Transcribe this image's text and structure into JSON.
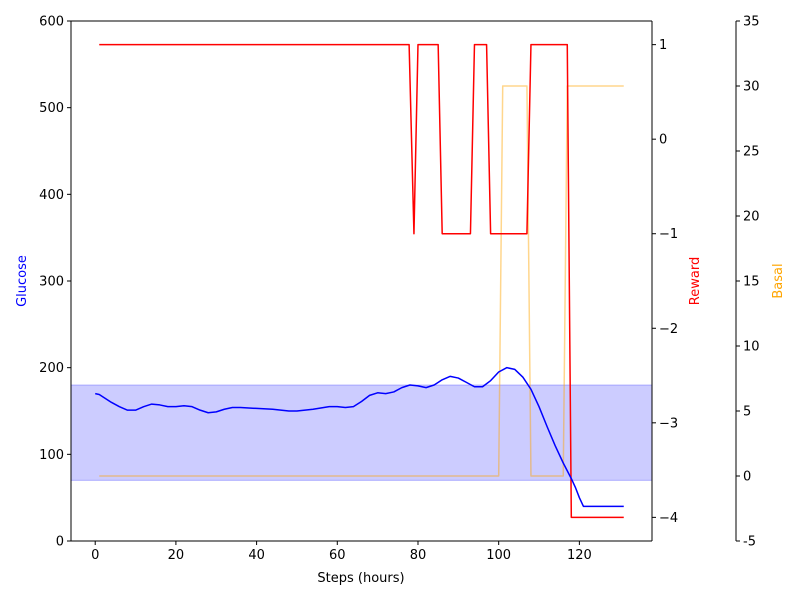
{
  "chart_data": {
    "type": "line",
    "xlabel": "Steps (hours)",
    "xlim": [
      -6,
      138
    ],
    "xticks": [
      0,
      20,
      40,
      60,
      80,
      100,
      120
    ],
    "axes": {
      "glucose": {
        "label": "Glucose",
        "color": "#0000ff",
        "ylim": [
          0,
          600
        ],
        "ticks": [
          0,
          100,
          200,
          300,
          400,
          500,
          600
        ]
      },
      "reward": {
        "label": "Reward",
        "color": "#ff0000",
        "ylim": [
          -4.25,
          1.25
        ],
        "ticks": [
          1,
          0,
          -1,
          -2,
          -3,
          -4
        ],
        "tick_labels": [
          "1",
          "0",
          "−1",
          "−2",
          "−3",
          "−4"
        ]
      },
      "basal": {
        "label": "Basal",
        "color": "#ffa500",
        "ylim": [
          -5,
          35
        ],
        "ticks": [
          -5,
          0,
          5,
          10,
          15,
          20,
          25,
          30,
          35
        ]
      }
    },
    "target_band": {
      "axis": "glucose",
      "range": [
        70,
        180
      ],
      "color": "#0000ff",
      "opacity": 0.2
    },
    "series": [
      {
        "axis": "glucose",
        "color": "#0000ff",
        "opacity": 1,
        "x": [
          0,
          1,
          2,
          4,
          6,
          8,
          10,
          12,
          14,
          16,
          18,
          20,
          22,
          24,
          26,
          28,
          30,
          32,
          34,
          36,
          40,
          44,
          48,
          50,
          54,
          58,
          60,
          62,
          64,
          66,
          68,
          70,
          72,
          74,
          76,
          78,
          80,
          82,
          84,
          86,
          88,
          90,
          92,
          94,
          96,
          98,
          100,
          102,
          104,
          106,
          108,
          110,
          112,
          114,
          116,
          118,
          119,
          120,
          121,
          124,
          128,
          131
        ],
        "y": [
          170,
          169,
          166,
          160,
          155,
          151,
          151,
          155,
          158,
          157,
          155,
          155,
          156,
          155,
          151,
          148,
          149,
          152,
          154,
          154,
          153,
          152,
          150,
          150,
          152,
          155,
          155,
          154,
          155,
          161,
          168,
          171,
          170,
          172,
          177,
          180,
          179,
          177,
          180,
          186,
          190,
          188,
          183,
          178,
          178,
          185,
          195,
          200,
          198,
          189,
          175,
          155,
          132,
          110,
          90,
          72,
          62,
          50,
          40,
          40,
          40,
          40
        ]
      },
      {
        "axis": "reward",
        "color": "#ff0000",
        "opacity": 1,
        "x": [
          1,
          77.8,
          79,
          80,
          85,
          86,
          93,
          94,
          97,
          98,
          107,
          108,
          117,
          118,
          131
        ],
        "y": [
          1,
          1,
          -1,
          1,
          1,
          -1,
          -1,
          1,
          1,
          -1,
          -1,
          1,
          1,
          -4,
          -4
        ]
      },
      {
        "axis": "basal",
        "color": "#ffa500",
        "opacity": 0.45,
        "x": [
          1,
          100,
          101,
          107,
          108,
          116,
          117,
          131
        ],
        "y": [
          0,
          0,
          30,
          30,
          0,
          0,
          30,
          30
        ]
      }
    ]
  }
}
